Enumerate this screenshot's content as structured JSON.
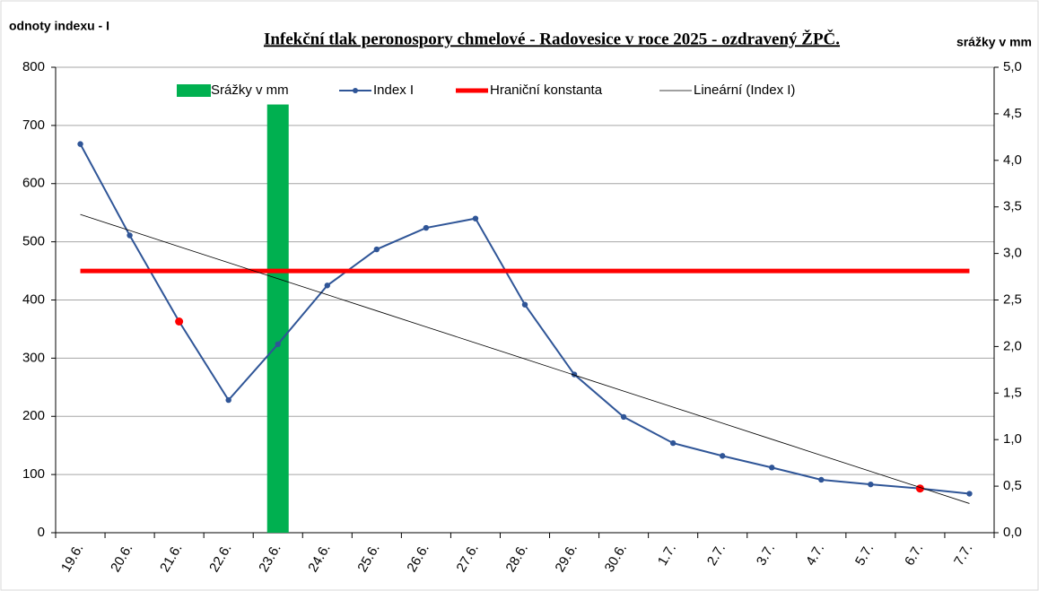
{
  "chart_data": {
    "type": "combo",
    "title": "Infekční tlak peronospory chmelové  - Radovesice v roce 2025 - ozdravený ŽPČ.",
    "y_label": "odnoty indexu - I",
    "y2_label": "srážky v mm",
    "categories": [
      "19.6.",
      "20.6.",
      "21.6.",
      "22.6.",
      "23.6.",
      "24.6.",
      "25.6.",
      "26.6.",
      "27.6.",
      "28.6.",
      "29.6.",
      "30.6.",
      "1.7.",
      "2.7.",
      "3.7.",
      "4.7.",
      "5.7.",
      "6.7.",
      "7.7."
    ],
    "series": [
      {
        "name": "Srážky v mm",
        "color": "#00b050",
        "style": "bar",
        "axis": "y2",
        "values": [
          0,
          0,
          0,
          0,
          4.6,
          0,
          0,
          0,
          0,
          0,
          0,
          0,
          0,
          0,
          0,
          0,
          0,
          0,
          0
        ]
      },
      {
        "name": "Index I",
        "color": "#2f5597",
        "style": "line-markers",
        "values": [
          668,
          511,
          363,
          228,
          324,
          425,
          487,
          524,
          540,
          392,
          272,
          199,
          154,
          132,
          112,
          91,
          83,
          76,
          67
        ],
        "highlight_indices": [
          2,
          17
        ],
        "highlight_color": "#ff0000"
      },
      {
        "name": "Hraniční konstanta",
        "color": "#ff0000",
        "style": "line-thick",
        "values": [
          450,
          450,
          450,
          450,
          450,
          450,
          450,
          450,
          450,
          450,
          450,
          450,
          450,
          450,
          450,
          450,
          450,
          450,
          450
        ]
      },
      {
        "name": "Lineární (Index I)",
        "color": "#000000",
        "style": "line-thin",
        "values": [
          547,
          519.4,
          491.8,
          464.2,
          436.6,
          409,
          381.4,
          353.8,
          326.2,
          298.6,
          271,
          243.4,
          215.8,
          188.2,
          160.6,
          133,
          105.4,
          77.8,
          50.2
        ]
      }
    ],
    "ylim": [
      0,
      800
    ],
    "yticks": [
      0,
      100,
      200,
      300,
      400,
      500,
      600,
      700,
      800
    ],
    "y2lim": [
      0,
      5
    ],
    "y2ticks": [
      {
        "value": 0,
        "label": "0,0"
      },
      {
        "value": 0.5,
        "label": "0,5"
      },
      {
        "value": 1,
        "label": "1,0"
      },
      {
        "value": 1.5,
        "label": "1,5"
      },
      {
        "value": 2,
        "label": "2,0"
      },
      {
        "value": 2.5,
        "label": "2,5"
      },
      {
        "value": 3,
        "label": "3,0"
      },
      {
        "value": 3.5,
        "label": "3,5"
      },
      {
        "value": 4,
        "label": "4,0"
      },
      {
        "value": 4.5,
        "label": "4,5"
      },
      {
        "value": 5,
        "label": "5,0"
      }
    ],
    "grid": true
  }
}
